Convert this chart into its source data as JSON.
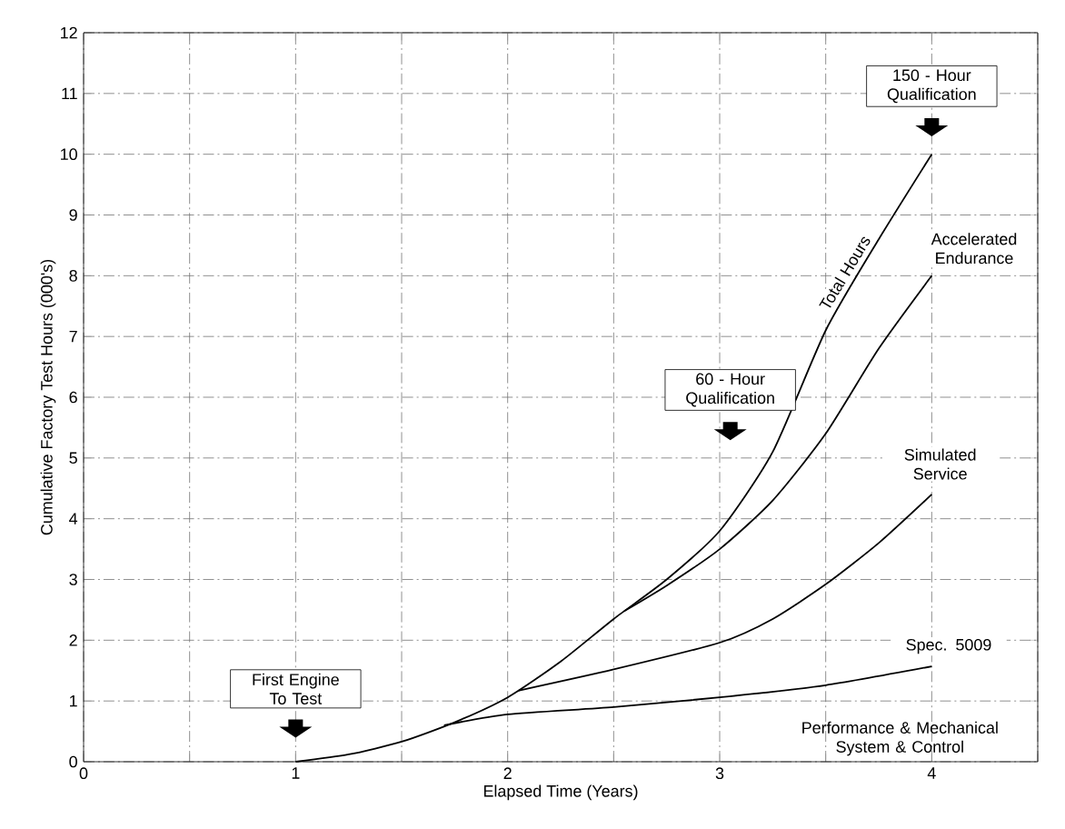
{
  "chart_data": {
    "type": "line",
    "xlabel": "Elapsed Time (Years)",
    "ylabel": "Cumulative Factory Test Hours (000's)",
    "xlim": [
      0,
      4.5
    ],
    "ylim": [
      0,
      12
    ],
    "xticks": [
      0,
      {
        "value": 0.5,
        "label": null
      },
      1,
      {
        "value": 1.5,
        "label": null
      },
      2,
      {
        "value": 2.5,
        "label": null
      },
      3,
      {
        "value": 3.5,
        "label": null
      },
      4,
      {
        "value": 4.5,
        "label": null
      }
    ],
    "yticks": [
      0,
      1,
      2,
      3,
      4,
      5,
      6,
      7,
      8,
      9,
      10,
      11,
      12
    ],
    "grid": true,
    "marker": "none",
    "line_style": "solid",
    "series": [
      {
        "name": "Total Hours",
        "color": "#000000",
        "x": [
          1,
          1.25,
          1.5,
          1.75,
          2,
          2.25,
          2.5,
          2.75,
          3,
          3.25,
          3.5,
          3.75,
          4
        ],
        "values": [
          0,
          0.12,
          0.33,
          0.65,
          1.06,
          1.65,
          2.35,
          3.0,
          3.8,
          5.1,
          7.1,
          8.6,
          10
        ]
      },
      {
        "name": "Accelerated Endurance",
        "color": "#000000",
        "x": [
          2.55,
          2.75,
          3,
          3.25,
          3.5,
          3.75,
          4
        ],
        "values": [
          2.48,
          2.9,
          3.5,
          4.3,
          5.4,
          6.8,
          8
        ]
      },
      {
        "name": "Simulated Service",
        "color": "#000000",
        "x": [
          2.05,
          2.5,
          3,
          3.25,
          3.5,
          3.75,
          4
        ],
        "values": [
          1.17,
          1.52,
          1.96,
          2.35,
          2.92,
          3.6,
          4.4
        ]
      },
      {
        "name": "Spec. 5009",
        "color": "#000000",
        "x": [
          1.7,
          2,
          2.5,
          3,
          3.5,
          4
        ],
        "values": [
          0.6,
          0.78,
          0.9,
          1.06,
          1.26,
          1.57
        ]
      }
    ],
    "annotations": [
      "First Engine To Test",
      "60 - Hour Qualification",
      "150 - Hour Qualification",
      "Performance & Mechanical System & Control"
    ]
  }
}
